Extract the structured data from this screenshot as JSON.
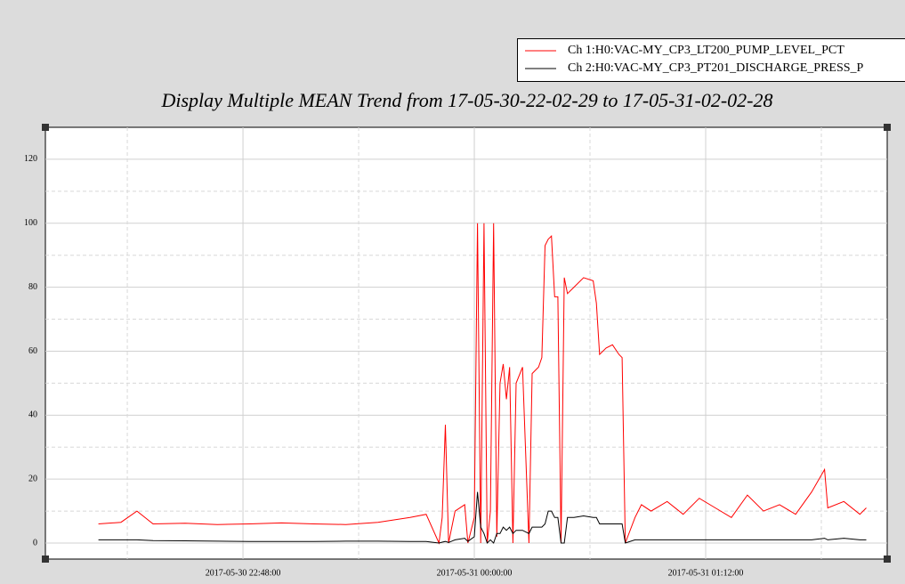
{
  "chart_data": {
    "type": "line",
    "title": "Display Multiple MEAN Trend from 17-05-30-22-02-29 to 17-05-31-02-02-28",
    "x": [
      "2017-05-30 22:03:00",
      "2017-05-30 22:10:00",
      "2017-05-30 22:15:00",
      "2017-05-30 22:20:00",
      "2017-05-30 22:30:00",
      "2017-05-30 22:40:00",
      "2017-05-30 22:50:00",
      "2017-05-30 23:00:00",
      "2017-05-30 23:10:00",
      "2017-05-30 23:20:00",
      "2017-05-30 23:30:00",
      "2017-05-30 23:40:00",
      "2017-05-30 23:45:00",
      "2017-05-30 23:49:00",
      "2017-05-30 23:50:00",
      "2017-05-30 23:51:00",
      "2017-05-30 23:52:00",
      "2017-05-30 23:54:00",
      "2017-05-30 23:57:00",
      "2017-05-30 23:58:00",
      "2017-05-31 00:00:00",
      "2017-05-31 00:01:00",
      "2017-05-31 00:02:00",
      "2017-05-31 00:03:00",
      "2017-05-31 00:04:00",
      "2017-05-31 00:05:00",
      "2017-05-31 00:06:00",
      "2017-05-31 00:07:00",
      "2017-05-31 00:08:00",
      "2017-05-31 00:09:00",
      "2017-05-31 00:10:00",
      "2017-05-31 00:11:00",
      "2017-05-31 00:12:00",
      "2017-05-31 00:13:00",
      "2017-05-31 00:15:00",
      "2017-05-31 00:17:00",
      "2017-05-31 00:18:00",
      "2017-05-31 00:20:00",
      "2017-05-31 00:21:00",
      "2017-05-31 00:22:00",
      "2017-05-31 00:23:00",
      "2017-05-31 00:24:00",
      "2017-05-31 00:25:00",
      "2017-05-31 00:26:00",
      "2017-05-31 00:27:00",
      "2017-05-31 00:28:00",
      "2017-05-31 00:29:00",
      "2017-05-31 00:31:00",
      "2017-05-31 00:34:00",
      "2017-05-31 00:37:00",
      "2017-05-31 00:38:00",
      "2017-05-31 00:39:00",
      "2017-05-31 00:41:00",
      "2017-05-31 00:43:00",
      "2017-05-31 00:45:00",
      "2017-05-31 00:46:00",
      "2017-05-31 00:47:00",
      "2017-05-31 00:50:00",
      "2017-05-31 00:52:00",
      "2017-05-31 00:55:00",
      "2017-05-31 01:00:00",
      "2017-05-31 01:05:00",
      "2017-05-31 01:10:00",
      "2017-05-31 01:15:00",
      "2017-05-31 01:20:00",
      "2017-05-31 01:25:00",
      "2017-05-31 01:30:00",
      "2017-05-31 01:35:00",
      "2017-05-31 01:40:00",
      "2017-05-31 01:45:00",
      "2017-05-31 01:49:00",
      "2017-05-31 01:50:00",
      "2017-05-31 01:55:00",
      "2017-05-31 02:00:00",
      "2017-05-31 02:02:00"
    ],
    "series": [
      {
        "name": "Ch 1:H0:VAC-MY_CP3_LT200_PUMP_LEVEL_PCT",
        "color": "#ff0000",
        "values": [
          6,
          6.5,
          10,
          6,
          6.2,
          5.8,
          6,
          6.3,
          6,
          5.8,
          6.5,
          8,
          9,
          0,
          8,
          37,
          0,
          10,
          12,
          0,
          8,
          100,
          0,
          100,
          0,
          10,
          100,
          2,
          50,
          56,
          45,
          55,
          0,
          50,
          55,
          0,
          53,
          55,
          58,
          93,
          95,
          96,
          77,
          77,
          0,
          83,
          78,
          80,
          83,
          82,
          75,
          59,
          61,
          62,
          59,
          58,
          0,
          8,
          12,
          10,
          13,
          9,
          14,
          11,
          8,
          15,
          10,
          12,
          9,
          16,
          23,
          11,
          13,
          9,
          11
        ]
      },
      {
        "name": "Ch 2:H0:VAC-MY_CP3_PT201_DISCHARGE_PRESS_P",
        "color": "#000000",
        "values": [
          1,
          1,
          1,
          0.8,
          0.7,
          0.6,
          0.5,
          0.5,
          0.5,
          0.6,
          0.6,
          0.5,
          0.5,
          0,
          0.3,
          0.5,
          0.2,
          1,
          1.5,
          0.5,
          2,
          16,
          5,
          3,
          0,
          1,
          0,
          3,
          3,
          5,
          4,
          5,
          3,
          4,
          4,
          3,
          5,
          5,
          5,
          6,
          10,
          10,
          8,
          8,
          0,
          0,
          8,
          8,
          8.5,
          8,
          8,
          6,
          6,
          6,
          6,
          6,
          0,
          1,
          1,
          1,
          1,
          1,
          1,
          1,
          1,
          1,
          1,
          1,
          1,
          1,
          1.5,
          1,
          1.5,
          1,
          1
        ]
      }
    ],
    "xlim": [
      "2017-05-30 21:46:30",
      "2017-05-31 02:08:30"
    ],
    "xticks": [
      "2017-05-30 22:48:00",
      "2017-05-31 00:00:00",
      "2017-05-31 01:12:00"
    ],
    "ylim": [
      -5,
      130
    ],
    "yticks": [
      0,
      20,
      40,
      60,
      80,
      100,
      120
    ],
    "grid": true
  }
}
